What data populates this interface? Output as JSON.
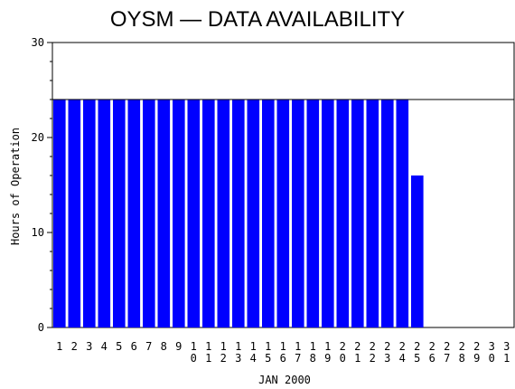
{
  "chart_data": {
    "type": "bar",
    "title": "OYSM — DATA AVAILABILITY",
    "xlabel": "JAN 2000",
    "ylabel": "Hours of Operation",
    "categories": [
      "1",
      "2",
      "3",
      "4",
      "5",
      "6",
      "7",
      "8",
      "9",
      "10",
      "11",
      "12",
      "13",
      "14",
      "15",
      "16",
      "17",
      "18",
      "19",
      "20",
      "21",
      "22",
      "23",
      "24",
      "25",
      "26",
      "27",
      "28",
      "29",
      "30",
      "31"
    ],
    "values": [
      24,
      24,
      24,
      24,
      24,
      24,
      24,
      24,
      24,
      24,
      24,
      24,
      24,
      24,
      24,
      24,
      24,
      24,
      24,
      24,
      24,
      24,
      24,
      24,
      16,
      0,
      0,
      0,
      0,
      0,
      0
    ],
    "ylim": [
      0,
      30
    ],
    "yticks": [
      0,
      10,
      20,
      30
    ],
    "reference_line": 24,
    "bar_color": "#0000ff",
    "grid": false
  }
}
